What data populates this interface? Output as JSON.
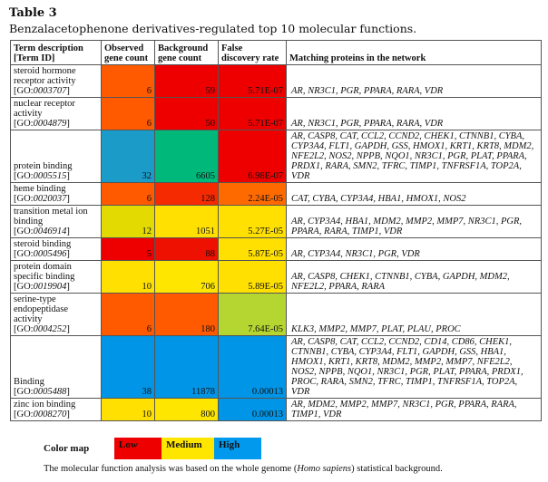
{
  "title": "Table 3",
  "subtitle": "Benzalacetophenone derivatives-regulated top 10 molecular functions.",
  "headers": [
    "Term description [Term ID]",
    "Observed gene count",
    "Background gene count",
    "False discovery rate",
    "Matching proteins in the network"
  ],
  "rows": [
    {
      "term": "steroid hormone receptor activity",
      "prefix": "[GO:",
      "id": "0003707",
      "obs": "6",
      "obs_color": "#ff5a00",
      "bg": "59",
      "bg_color": "#ee0000",
      "fdr": "5.71E-07",
      "fdr_color": "#ee0000",
      "proteins": "AR, NR3C1, PGR, PPARA, RARA, VDR"
    },
    {
      "term": "nuclear receptor activity",
      "prefix": "[GO:",
      "id": "0004879",
      "obs": "6",
      "obs_color": "#ff5a00",
      "bg": "50",
      "bg_color": "#ee0000",
      "fdr": "5.71E-07",
      "fdr_color": "#ee0000",
      "proteins": "AR, NR3C1, PGR, PPARA, RARA, VDR"
    },
    {
      "term": "protein binding",
      "prefix": "[GO:",
      "id": "0005515",
      "obs": "32",
      "obs_color": "#1a9bc8",
      "bg": "6605",
      "bg_color": "#00b87a",
      "fdr": "6.98E-07",
      "fdr_color": "#ee0000",
      "proteins": "AR, CASP8, CAT, CCL2, CCND2, CHEK1, CTNNB1, CYBA, CYP3A4, FLT1, GAPDH, GSS, HMOX1, KRT1, KRT8, MDM2, NFE2L2, NOS2, NPPB, NQO1, NR3C1, PGR, PLAT, PPARA, PRDX1, RARA, SMN2, TFRC, TIMP1, TNFRSF1A, TOP2A, VDR"
    },
    {
      "term": "heme binding",
      "prefix": "[GO:",
      "id": "0020037",
      "obs": "6",
      "obs_color": "#ff5a00",
      "bg": "128",
      "bg_color": "#f52a00",
      "fdr": "2.24E-05",
      "fdr_color": "#ff6a00",
      "proteins": "CAT, CYBA, CYP3A4, HBA1, HMOX1, NOS2"
    },
    {
      "term": "transition metal ion binding",
      "prefix": "[GO:",
      "id": "0046914",
      "obs": "12",
      "obs_color": "#e2da00",
      "bg": "1051",
      "bg_color": "#ffe000",
      "fdr": "5.27E-05",
      "fdr_color": "#ffe000",
      "proteins": "AR, CYP3A4, HBA1, MDM2, MMP2, MMP7, NR3C1, PGR, PPARA, RARA, TIMP1, VDR"
    },
    {
      "term": "steroid binding",
      "prefix": "[GO:",
      "id": "0005496",
      "obs": "5",
      "obs_color": "#ee0000",
      "bg": "88",
      "bg_color": "#ee1000",
      "fdr": "5.87E-05",
      "fdr_color": "#ffe000",
      "proteins": "AR, CYP3A4, NR3C1, PGR, VDR"
    },
    {
      "term": "protein domain specific binding",
      "prefix": "[GO:",
      "id": "0019904",
      "obs": "10",
      "obs_color": "#ffe000",
      "bg": "706",
      "bg_color": "#ffe600",
      "fdr": "5.89E-05",
      "fdr_color": "#ffe000",
      "proteins": "AR, CASP8, CHEK1, CTNNB1, CYBA, GAPDH, MDM2, NFE2L2, PPARA, RARA"
    },
    {
      "term": "serine-type endopeptidase activity",
      "prefix": "[GO:",
      "id": "0004252",
      "obs": "6",
      "obs_color": "#ff5a00",
      "bg": "180",
      "bg_color": "#ff5a00",
      "fdr": "7.64E-05",
      "fdr_color": "#b5d631",
      "proteins": "KLK3, MMP2, MMP7, PLAT, PLAU, PROC"
    },
    {
      "term": "Binding",
      "prefix": "[GO:",
      "id": "0005488",
      "obs": "38",
      "obs_color": "#0095e6",
      "bg": "11878",
      "bg_color": "#0095e6",
      "fdr": "0.00013",
      "fdr_color": "#0095e6",
      "proteins": "AR, CASP8, CAT, CCL2, CCND2, CD14, CD86, CHEK1, CTNNB1, CYBA, CYP3A4, FLT1, GAPDH, GSS, HBA1, HMOX1, KRT1, KRT8, MDM2, MMP2, MMP7, NFE2L2, NOS2, NPPB, NQO1, NR3C1, PGR, PLAT, PPARA, PRDX1, PROC, RARA, SMN2, TFRC, TIMP1, TNFRSF1A, TOP2A, VDR"
    },
    {
      "term": "zinc ion binding",
      "prefix": "[GO:",
      "id": "0008270",
      "obs": "10",
      "obs_color": "#ffe000",
      "bg": "800",
      "bg_color": "#ffe600",
      "fdr": "0.00013",
      "fdr_color": "#0095e6",
      "proteins": "AR, MDM2, MMP2, MMP7, NR3C1, PGR, PPARA, RARA, TIMP1, VDR"
    }
  ],
  "legend": {
    "label": "Color map",
    "items": [
      {
        "label": "Low",
        "color": "#ee0000"
      },
      {
        "label": "Medium",
        "color": "#ffe600"
      },
      {
        "label": "High",
        "color": "#0099ee"
      }
    ]
  },
  "caption": {
    "pre": "The molecular function analysis was based on the whole genome (",
    "italic": "Homo sapiens",
    "post": ") statistical background."
  }
}
